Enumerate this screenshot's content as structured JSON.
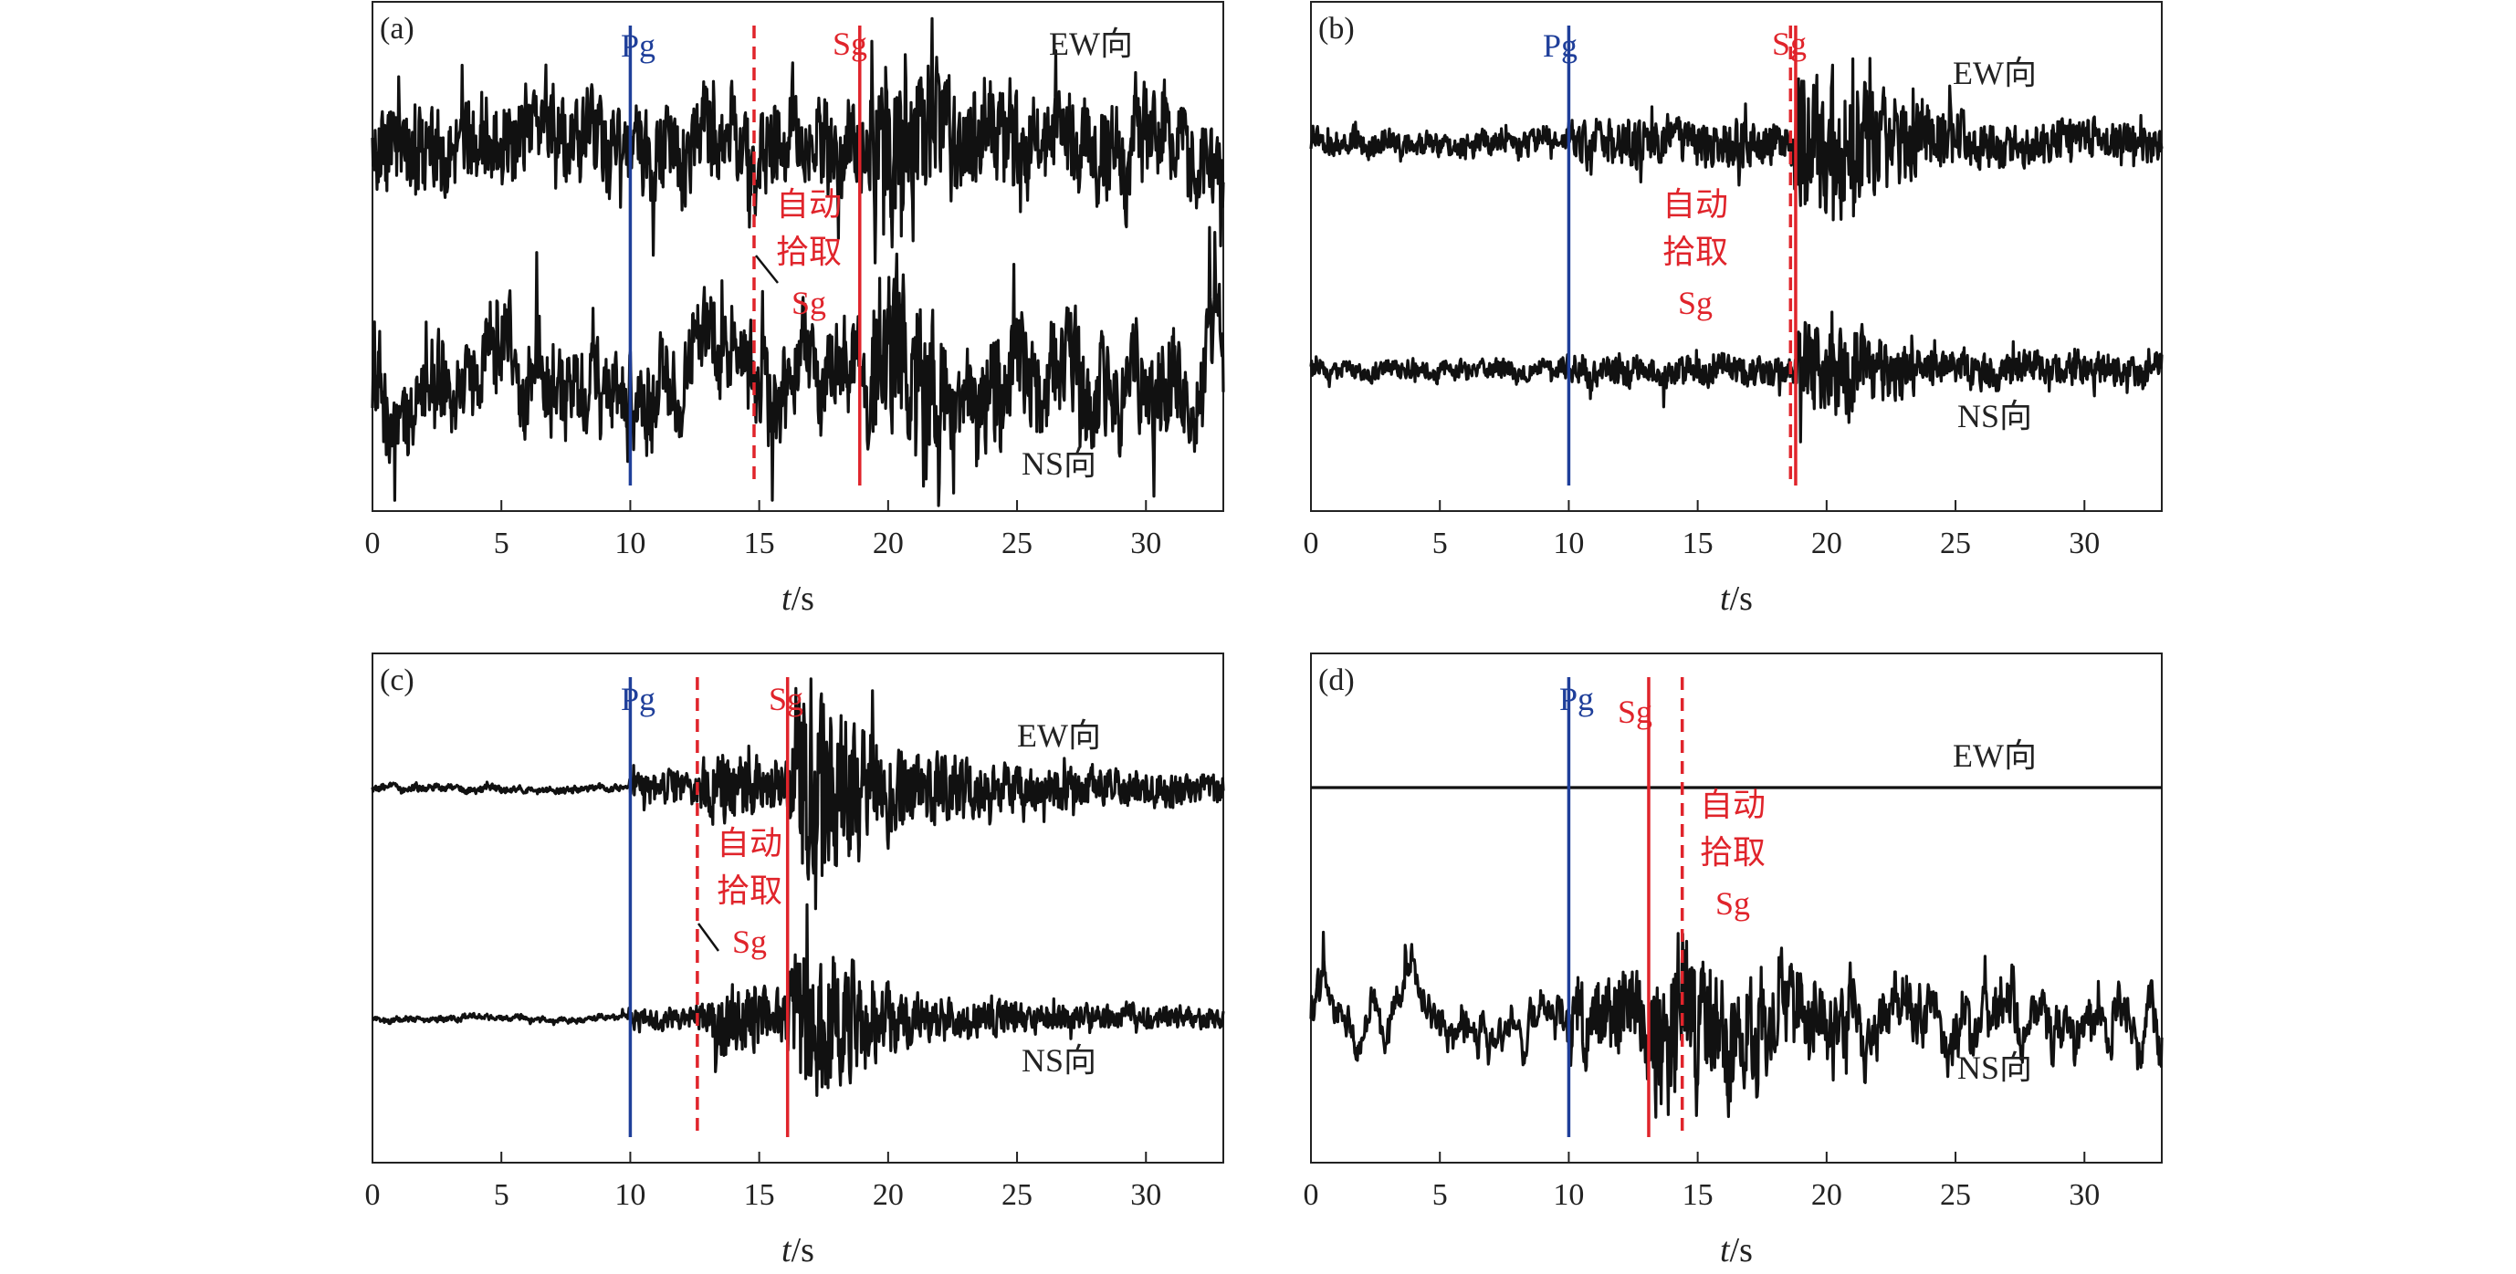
{
  "colors": {
    "pg": "#1f3f9a",
    "sg": "#e0242b",
    "trace": "#111111",
    "axis": "#222222",
    "background": "#ffffff"
  },
  "common": {
    "xlabel_var": "t",
    "xlabel_unit": "/s",
    "xticks": [
      0,
      5,
      10,
      15,
      20,
      25,
      30
    ],
    "xlim": [
      0,
      33
    ],
    "ew_label": "EW向",
    "ns_label": "NS向",
    "pg_label": "Pg",
    "sg_label": "Sg",
    "auto_label_line1": "自动",
    "auto_label_line2": "拾取",
    "auto_label_line3": "Sg"
  },
  "chart_data": [
    {
      "type": "line",
      "panel_label": "(a)",
      "xlabel": "t/s",
      "xlim": [
        0,
        33
      ],
      "grid": false,
      "pg_time": 10.0,
      "sg_manual_time": 18.9,
      "sg_auto_time": 14.8,
      "ew": {
        "name": "EW向",
        "profile": [
          [
            0,
            1.0
          ],
          [
            33,
            1.0
          ]
        ],
        "burst_time": 19.3,
        "burst_gain": 1.35,
        "burst_decay": 3.0,
        "lf": 0.45
      },
      "ns": {
        "name": "NS向",
        "profile": [
          [
            0,
            1.0
          ],
          [
            33,
            1.0
          ]
        ],
        "burst_time": 19.3,
        "burst_gain": 1.4,
        "burst_decay": 3.0,
        "lf": 0.8
      }
    },
    {
      "type": "line",
      "panel_label": "(b)",
      "xlabel": "t/s",
      "xlim": [
        0,
        33
      ],
      "grid": false,
      "pg_time": 10.0,
      "sg_manual_time": 18.8,
      "sg_auto_time": 18.6,
      "ew": {
        "name": "EW向",
        "profile": [
          [
            0,
            0.28
          ],
          [
            9.9,
            0.28
          ],
          [
            10.0,
            0.55
          ],
          [
            18.7,
            0.55
          ],
          [
            18.9,
            2.1
          ],
          [
            21.0,
            1.6
          ],
          [
            24.0,
            0.8
          ],
          [
            27.0,
            0.5
          ],
          [
            33.0,
            0.45
          ]
        ],
        "burst_time": 0,
        "burst_gain": 0,
        "burst_decay": 1,
        "lf": 0.1
      },
      "ns": {
        "name": "NS向",
        "profile": [
          [
            0,
            0.22
          ],
          [
            9.9,
            0.22
          ],
          [
            10.0,
            0.35
          ],
          [
            18.7,
            0.35
          ],
          [
            18.9,
            1.2
          ],
          [
            21.5,
            0.9
          ],
          [
            24.0,
            0.45
          ],
          [
            33.0,
            0.35
          ]
        ],
        "burst_time": 0,
        "burst_gain": 0,
        "burst_decay": 1,
        "lf": 0.1
      }
    },
    {
      "type": "line",
      "panel_label": "(c)",
      "xlabel": "t/s",
      "xlim": [
        0,
        33
      ],
      "grid": false,
      "pg_time": 10.0,
      "sg_manual_time": 16.1,
      "sg_auto_time": 12.6,
      "ew": {
        "name": "EW向",
        "profile": [
          [
            0,
            0.07
          ],
          [
            9.9,
            0.07
          ],
          [
            10.0,
            0.35
          ],
          [
            12.5,
            0.45
          ],
          [
            13.5,
            0.9
          ],
          [
            16.0,
            0.7
          ],
          [
            16.6,
            2.3
          ],
          [
            18.2,
            2.0
          ],
          [
            21.0,
            0.9
          ],
          [
            25.0,
            0.55
          ],
          [
            33.0,
            0.35
          ]
        ],
        "burst_time": 0,
        "burst_gain": 0,
        "burst_decay": 1,
        "lf": 0.05
      },
      "ns": {
        "name": "NS向",
        "profile": [
          [
            0,
            0.06
          ],
          [
            9.9,
            0.06
          ],
          [
            10.0,
            0.2
          ],
          [
            12.5,
            0.3
          ],
          [
            13.5,
            0.9
          ],
          [
            16.0,
            0.6
          ],
          [
            16.6,
            2.1
          ],
          [
            18.5,
            1.4
          ],
          [
            21.0,
            0.6
          ],
          [
            25.0,
            0.35
          ],
          [
            33.0,
            0.22
          ]
        ],
        "burst_time": 0,
        "burst_gain": 0,
        "burst_decay": 1,
        "lf": 0.05
      }
    },
    {
      "type": "line",
      "panel_label": "(d)",
      "xlabel": "t/s",
      "xlim": [
        0,
        33
      ],
      "grid": false,
      "pg_time": 10.0,
      "sg_manual_time": 13.1,
      "sg_auto_time": 14.4,
      "ew": {
        "name": "EW向",
        "profile": [
          [
            0,
            0.0
          ],
          [
            33,
            0.0
          ]
        ],
        "burst_time": 0,
        "burst_gain": 0,
        "burst_decay": 1,
        "lf": 0.0
      },
      "ns": {
        "name": "NS向",
        "profile": [
          [
            0,
            0.25
          ],
          [
            9.9,
            0.25
          ],
          [
            10.0,
            0.9
          ],
          [
            13.0,
            0.95
          ],
          [
            13.3,
            1.9
          ],
          [
            16.0,
            1.4
          ],
          [
            19.0,
            0.9
          ],
          [
            24.0,
            0.55
          ],
          [
            33.0,
            0.4
          ]
        ],
        "burst_time": 0,
        "burst_gain": 0,
        "burst_decay": 1,
        "lf": 0.6
      }
    }
  ]
}
